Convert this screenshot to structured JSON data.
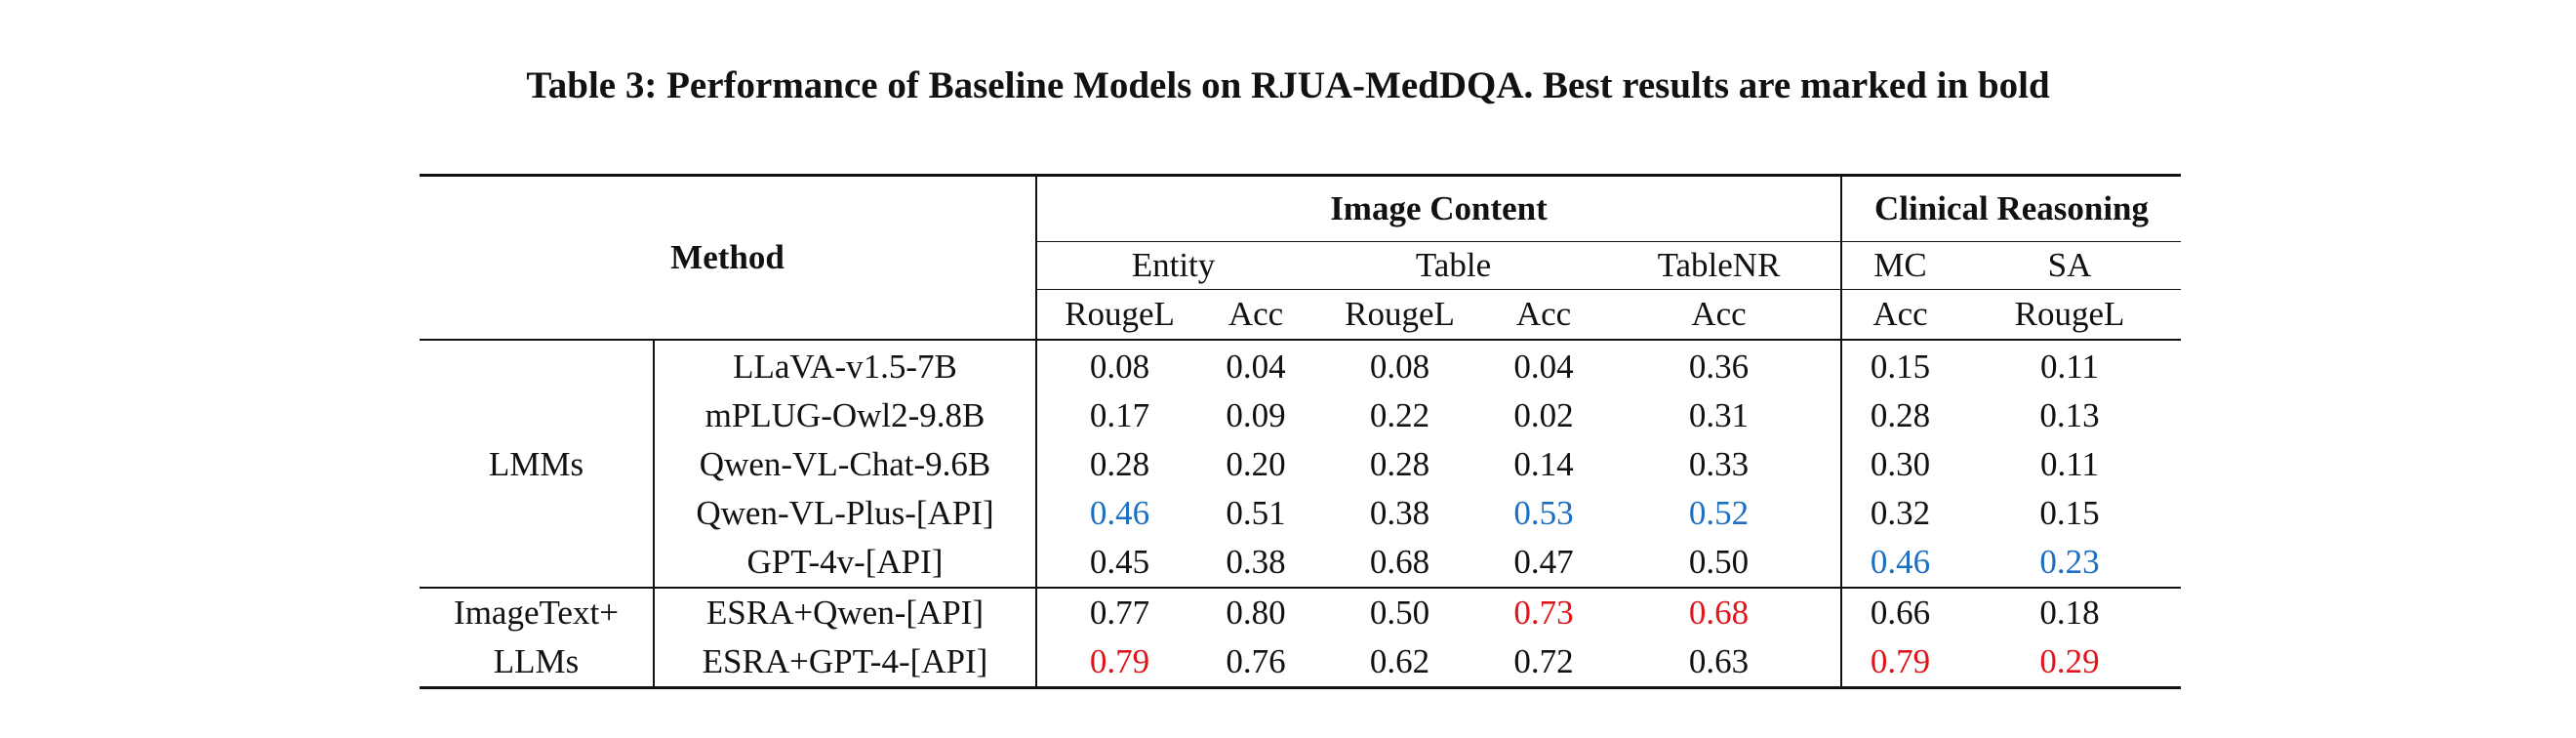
{
  "caption": "Table 3: Performance of Baseline Models on RJUA-MedDQA. Best results are marked in bold",
  "header": {
    "method": "Method",
    "image_content": "Image Content",
    "clinical_reasoning": "Clinical Reasoning",
    "entity": "Entity",
    "table": "Table",
    "tablenr": "TableNR",
    "mc": "MC",
    "sa": "SA",
    "metrics": [
      "RougeL",
      "Acc",
      "RougeL",
      "Acc",
      "Acc",
      "Acc",
      "RougeL"
    ]
  },
  "groups": [
    {
      "label_lines": [
        "LMMs"
      ]
    },
    {
      "label_lines": [
        "ImageText+",
        "LLMs"
      ]
    }
  ],
  "rows": [
    {
      "model": "LLaVA-v1.5-7B",
      "values": [
        "0.08",
        "0.04",
        "0.08",
        "0.04",
        "0.36",
        "0.15",
        "0.11"
      ],
      "highlight": [
        "",
        "",
        "",
        "",
        "",
        "",
        ""
      ]
    },
    {
      "model": "mPLUG-Owl2-9.8B",
      "values": [
        "0.17",
        "0.09",
        "0.22",
        "0.02",
        "0.31",
        "0.28",
        "0.13"
      ],
      "highlight": [
        "",
        "",
        "",
        "",
        "",
        "",
        ""
      ]
    },
    {
      "model": "Qwen-VL-Chat-9.6B",
      "values": [
        "0.28",
        "0.20",
        "0.28",
        "0.14",
        "0.33",
        "0.30",
        "0.11"
      ],
      "highlight": [
        "",
        "",
        "",
        "",
        "",
        "",
        ""
      ]
    },
    {
      "model": "Qwen-VL-Plus-[API]",
      "values": [
        "0.46",
        "0.51",
        "0.38",
        "0.53",
        "0.52",
        "0.32",
        "0.15"
      ],
      "highlight": [
        "blue",
        "",
        "",
        "blue",
        "blue",
        "",
        ""
      ]
    },
    {
      "model": "GPT-4v-[API]",
      "values": [
        "0.45",
        "0.38",
        "0.68",
        "0.47",
        "0.50",
        "0.46",
        "0.23"
      ],
      "highlight": [
        "",
        "",
        "",
        "",
        "",
        "blue",
        "blue"
      ]
    },
    {
      "model": "ESRA+Qwen-[API]",
      "values": [
        "0.77",
        "0.80",
        "0.50",
        "0.73",
        "0.68",
        "0.66",
        "0.18"
      ],
      "highlight": [
        "",
        "",
        "",
        "red",
        "red",
        "",
        ""
      ]
    },
    {
      "model": "ESRA+GPT-4-[API]",
      "values": [
        "0.79",
        "0.76",
        "0.62",
        "0.72",
        "0.63",
        "0.79",
        "0.29"
      ],
      "highlight": [
        "red",
        "",
        "",
        "",
        "",
        "red",
        "red"
      ]
    }
  ],
  "colors": {
    "best_lmm": "#1b6fc2",
    "best_overall": "#e0161c",
    "text": "#111111"
  }
}
